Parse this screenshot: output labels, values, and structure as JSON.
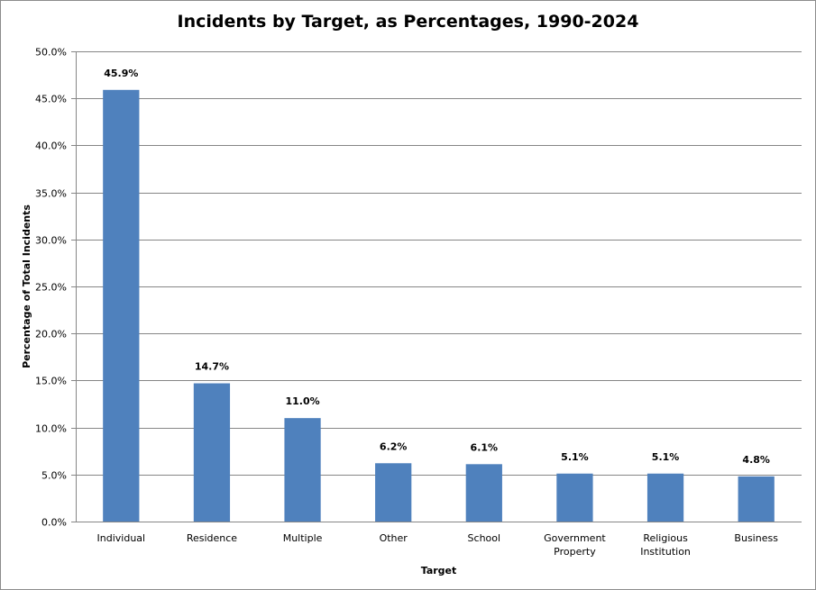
{
  "chart_data": {
    "type": "bar",
    "title": "Incidents by Target, as Percentages, 1990-2024",
    "xlabel": "Target",
    "ylabel": "Percentage of Total Incidents",
    "categories": [
      "Individual",
      "Residence",
      "Multiple",
      "Other",
      "School",
      "Government Property",
      "Religious Institution",
      "Business"
    ],
    "category_lines": [
      [
        "Individual"
      ],
      [
        "Residence"
      ],
      [
        "Multiple"
      ],
      [
        "Other"
      ],
      [
        "School"
      ],
      [
        "Government",
        "Property"
      ],
      [
        "Religious",
        "Institution"
      ],
      [
        "Business"
      ]
    ],
    "values": [
      45.9,
      14.7,
      11.0,
      6.2,
      6.1,
      5.1,
      5.1,
      4.8
    ],
    "data_labels": [
      "45.9%",
      "14.7%",
      "11.0%",
      "6.2%",
      "6.1%",
      "5.1%",
      "5.1%",
      "4.8%"
    ],
    "ylim": [
      0,
      50
    ],
    "yticks": [
      0,
      5,
      10,
      15,
      20,
      25,
      30,
      35,
      40,
      45,
      50
    ],
    "ytick_labels": [
      "0.0%",
      "5.0%",
      "10.0%",
      "15.0%",
      "20.0%",
      "25.0%",
      "30.0%",
      "35.0%",
      "40.0%",
      "45.0%",
      "50.0%"
    ],
    "grid": true,
    "legend": "none",
    "colors": {
      "bar": "#4f81bd",
      "grid": "#868686",
      "axis": "#868686"
    }
  }
}
